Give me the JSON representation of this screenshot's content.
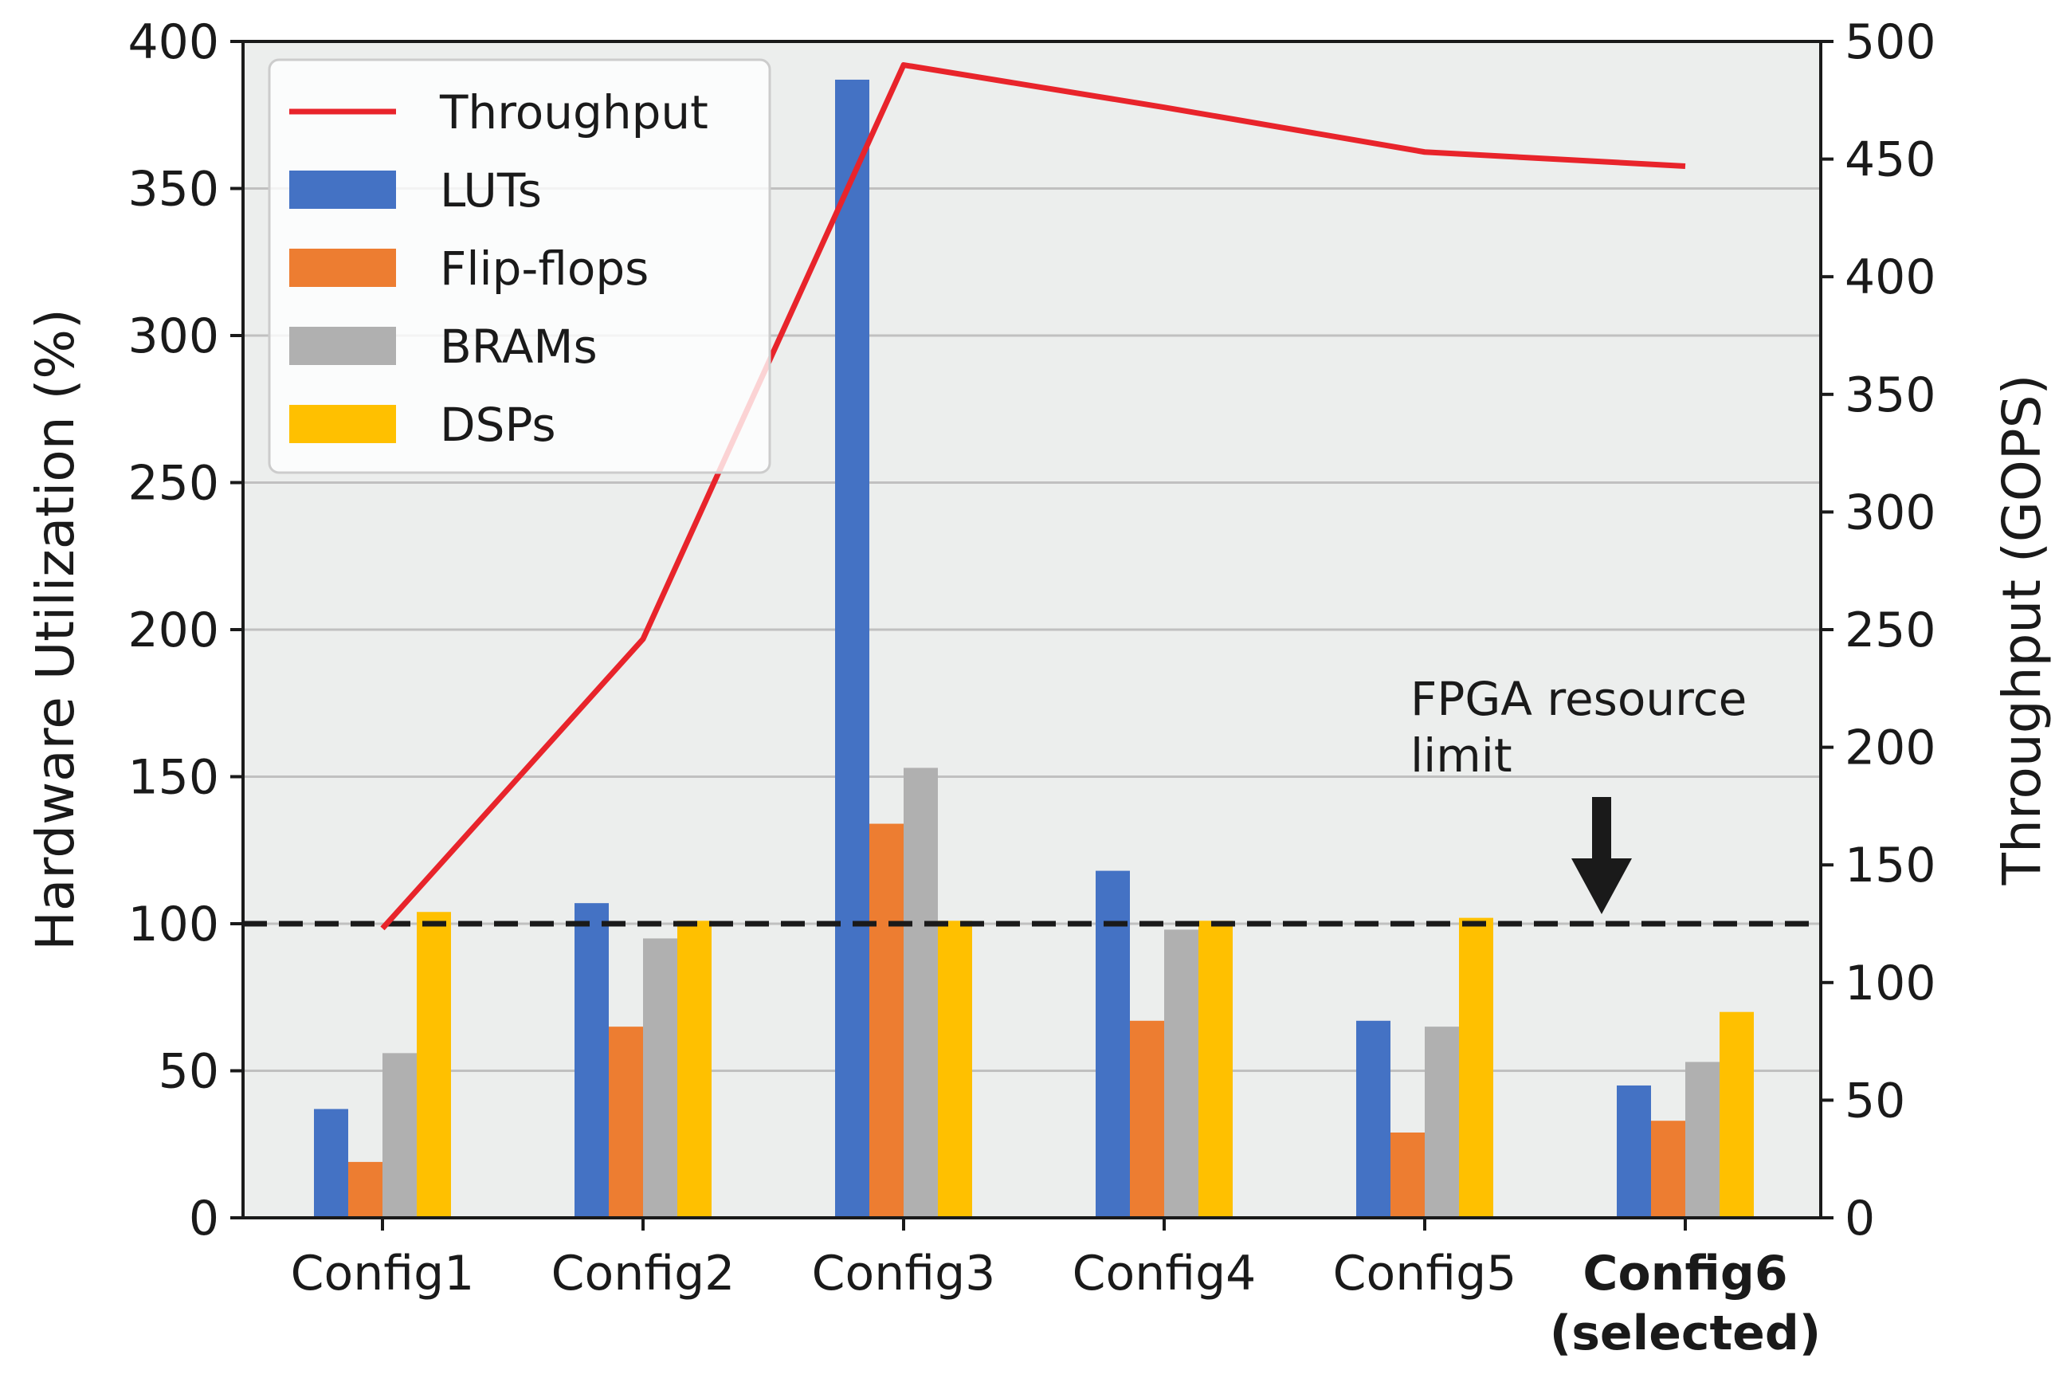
{
  "chart_data": {
    "type": "bar",
    "categories": [
      "Config1",
      "Config2",
      "Config3",
      "Config4",
      "Config5",
      "Config6"
    ],
    "category_sublabels": [
      "",
      "",
      "",
      "",
      "",
      "(selected)"
    ],
    "highlighted_category": "Config6",
    "series": [
      {
        "name": "LUTs",
        "color": "#4472c4",
        "axis": "left",
        "values": [
          37,
          107,
          387,
          118,
          67,
          45
        ]
      },
      {
        "name": "Flip-flops",
        "color": "#ed7d31",
        "axis": "left",
        "values": [
          19,
          65,
          134,
          67,
          29,
          33
        ]
      },
      {
        "name": "BRAMs",
        "color": "#b0b0b0",
        "axis": "left",
        "values": [
          56,
          95,
          153,
          98,
          65,
          53
        ]
      },
      {
        "name": "DSPs",
        "color": "#ffc000",
        "axis": "left",
        "values": [
          104,
          101,
          101,
          101,
          102,
          70
        ]
      }
    ],
    "line_series": {
      "name": "Throughput",
      "color": "#e8242b",
      "axis": "right",
      "values": [
        123,
        246,
        490,
        472,
        453,
        447
      ]
    },
    "ylabel": "Hardware Utilization (%)",
    "y2label": "Throughput (GOPS)",
    "ylim": [
      0,
      400
    ],
    "y2lim": [
      0,
      500
    ],
    "yticks": [
      0,
      50,
      100,
      150,
      200,
      250,
      300,
      350,
      400
    ],
    "y2ticks": [
      0,
      50,
      100,
      150,
      200,
      250,
      300,
      350,
      400,
      450,
      500
    ],
    "grid": true,
    "legend_position": "top-left",
    "reference_line": {
      "value": 100,
      "style": "dashed",
      "color": "#1a1a1a"
    },
    "annotation": {
      "lines": [
        "FPGA resource",
        "limit"
      ],
      "arrow_target": 100
    },
    "colors": {
      "background": "#eceeed",
      "grid": "#c0c0c0",
      "highlight": "#e8242b",
      "text": "#1a1a1a"
    }
  }
}
